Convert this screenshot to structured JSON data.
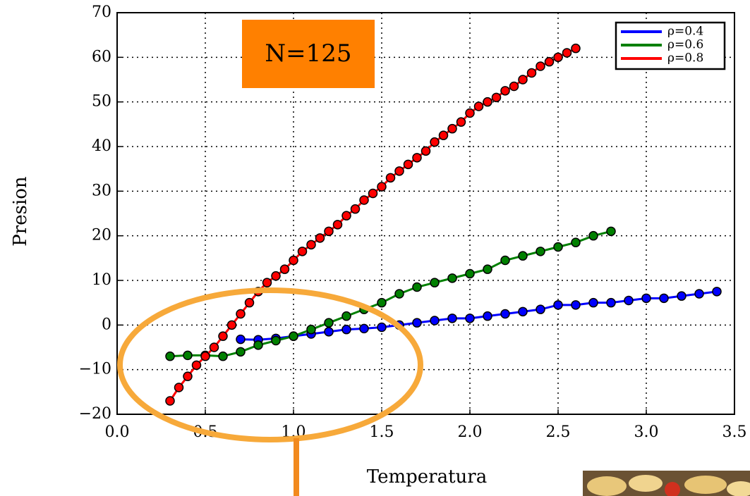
{
  "chart_data": {
    "type": "line",
    "title": "N=125",
    "xlabel": "Temperatura",
    "ylabel": "Presion",
    "xlim": [
      0,
      3.5
    ],
    "ylim": [
      -20,
      70
    ],
    "xticks": [
      {
        "value": 0,
        "label": "0.0"
      },
      0.5,
      {
        "value": 1,
        "label": "1.0"
      },
      1.5,
      {
        "value": 2,
        "label": "2.0"
      },
      2.5,
      {
        "value": 3,
        "label": "3.0"
      },
      3.5
    ],
    "yticks": [
      {
        "value": -20,
        "label": "−20"
      },
      {
        "value": -10,
        "label": "−10"
      },
      0,
      10,
      20,
      30,
      40,
      50,
      60,
      70
    ],
    "grid": true,
    "legend": "upper right",
    "series": [
      {
        "name": "ρ=0.4",
        "color": "#0000ff",
        "x": [
          0.7,
          0.8,
          0.9,
          1.0,
          1.1,
          1.2,
          1.3,
          1.4,
          1.5,
          1.6,
          1.7,
          1.8,
          1.9,
          2.0,
          2.1,
          2.2,
          2.3,
          2.4,
          2.5,
          2.6,
          2.7,
          2.8,
          2.9,
          3.0,
          3.1,
          3.2,
          3.3,
          3.4
        ],
        "values": [
          -3.2,
          -3.3,
          -3,
          -2.5,
          -2,
          -1.5,
          -1,
          -0.8,
          -0.5,
          0,
          0.5,
          1,
          1.5,
          1.5,
          2,
          2.5,
          3,
          3.5,
          4.5,
          4.5,
          5,
          5,
          5.5,
          6,
          6,
          6.5,
          7,
          7.5
        ]
      },
      {
        "name": "ρ=0.6",
        "color": "#008000",
        "x": [
          0.3,
          0.4,
          0.5,
          0.6,
          0.7,
          0.8,
          0.9,
          1.0,
          1.1,
          1.2,
          1.3,
          1.4,
          1.5,
          1.6,
          1.7,
          1.8,
          1.9,
          2.0,
          2.1,
          2.2,
          2.3,
          2.4,
          2.5,
          2.6,
          2.7,
          2.8
        ],
        "values": [
          -7,
          -6.8,
          -6.8,
          -7,
          -6,
          -4.5,
          -3.5,
          -2.5,
          -1,
          0.5,
          2,
          3.5,
          5,
          7,
          8.5,
          9.5,
          10.5,
          11.5,
          12.5,
          14.5,
          15.5,
          16.5,
          17.5,
          18.5,
          20,
          21
        ]
      },
      {
        "name": "ρ=0.8",
        "color": "#ff0000",
        "x": [
          0.3,
          0.35,
          0.4,
          0.45,
          0.5,
          0.55,
          0.6,
          0.65,
          0.7,
          0.75,
          0.8,
          0.85,
          0.9,
          0.95,
          1.0,
          1.05,
          1.1,
          1.15,
          1.2,
          1.25,
          1.3,
          1.35,
          1.4,
          1.45,
          1.5,
          1.55,
          1.6,
          1.65,
          1.7,
          1.75,
          1.8,
          1.85,
          1.9,
          1.95,
          2.0,
          2.05,
          2.1,
          2.15,
          2.2,
          2.25,
          2.3,
          2.35,
          2.4,
          2.45,
          2.5,
          2.55,
          2.6
        ],
        "values": [
          -17,
          -14,
          -11.5,
          -9,
          -7,
          -5,
          -2.5,
          0,
          2.5,
          5,
          7.5,
          9.5,
          11,
          12.5,
          14.5,
          16.5,
          18,
          19.5,
          21,
          22.5,
          24.5,
          26,
          28,
          29.5,
          31,
          33,
          34.5,
          36,
          37.5,
          39,
          41,
          42.5,
          44,
          45.5,
          47.5,
          49,
          50,
          51,
          52.5,
          53.5,
          55,
          56.5,
          58,
          59,
          60,
          61,
          62
        ]
      }
    ]
  }
}
